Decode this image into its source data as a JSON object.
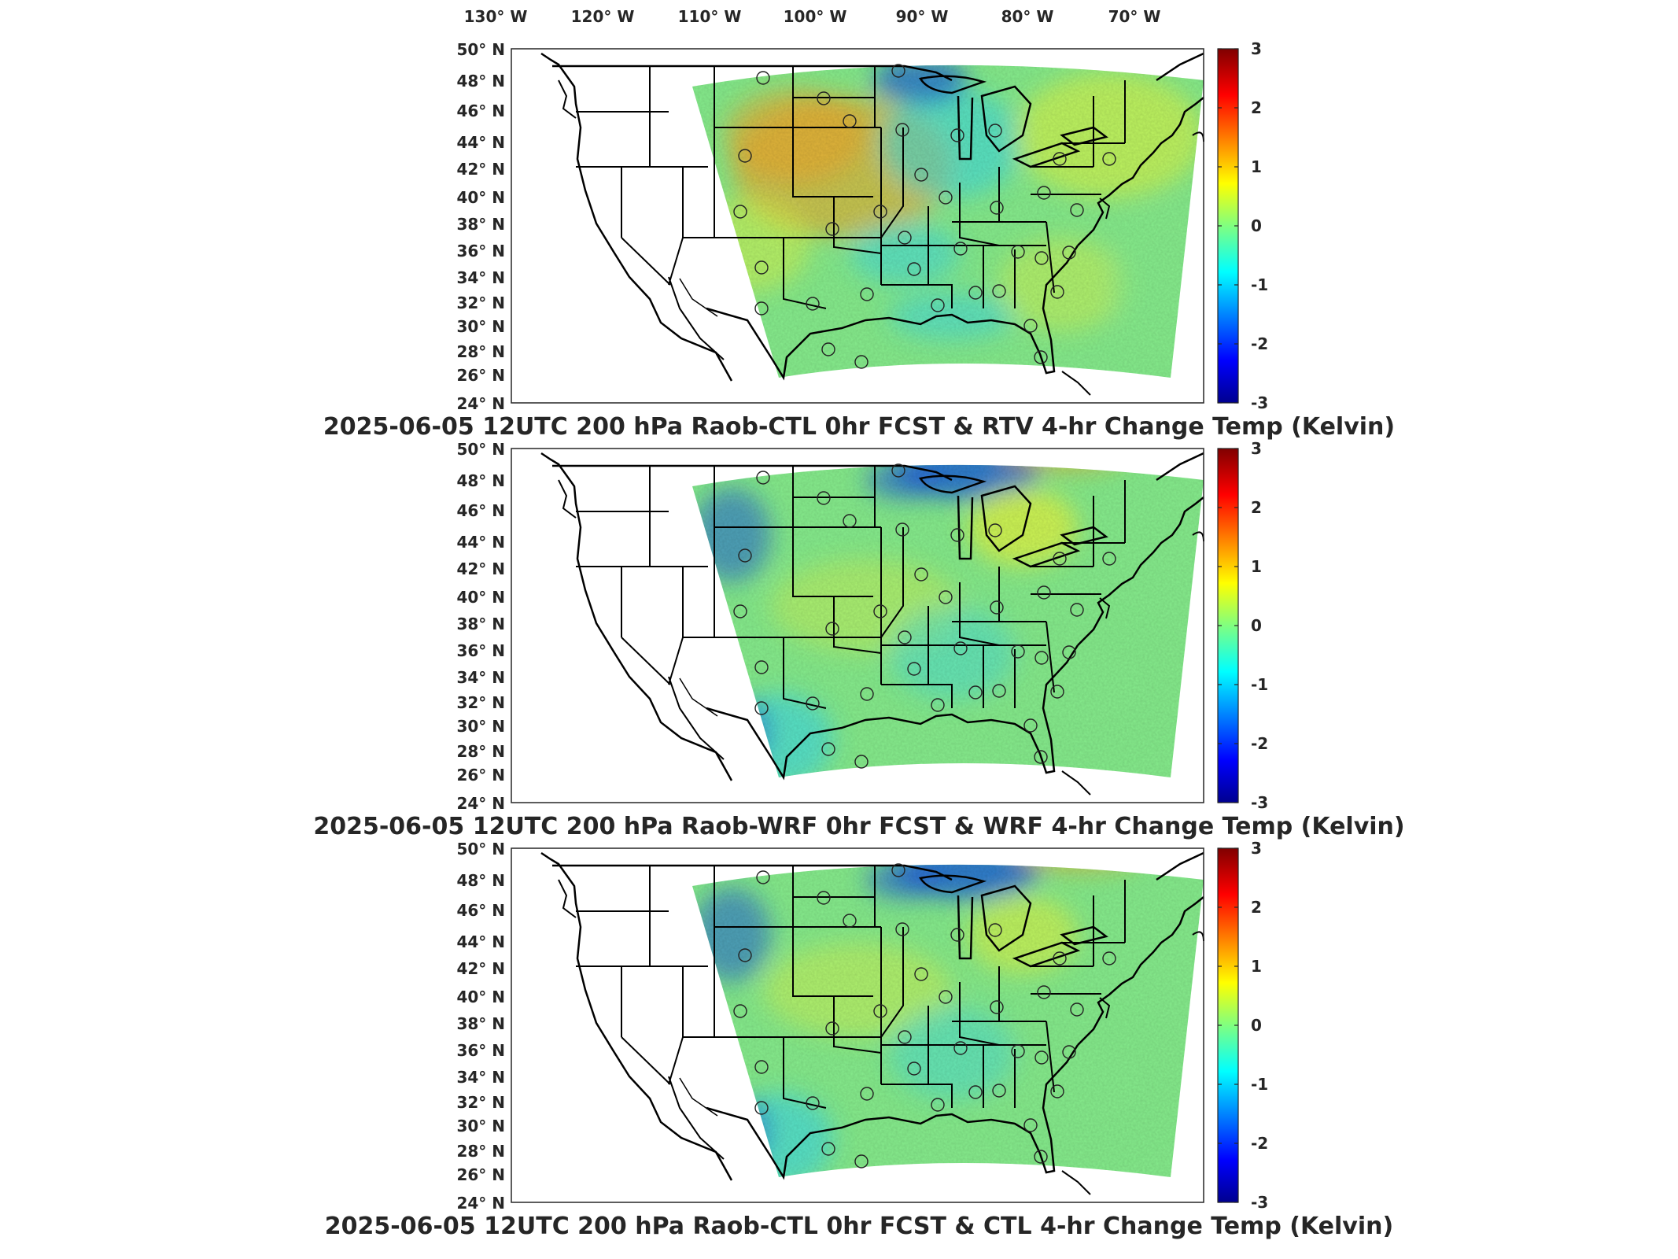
{
  "figure": {
    "lon_labels": [
      "130° W",
      "120° W",
      "110° W",
      "100° W",
      "90° W",
      "80° W",
      "70° W"
    ],
    "lon_values": [
      -130,
      -120,
      -110,
      -100,
      -90,
      -80,
      -70
    ],
    "lat_labels": [
      "50° N",
      "48° N",
      "46° N",
      "44° N",
      "42° N",
      "40° N",
      "38° N",
      "36° N",
      "34° N",
      "32° N",
      "30° N",
      "28° N",
      "26° N",
      "24° N"
    ],
    "colorbar": {
      "ticks": [
        "3",
        "2",
        "1",
        "0",
        "-1",
        "-2",
        "-3"
      ],
      "range": [
        -3,
        3
      ],
      "colormap": "jet",
      "colors": [
        "#00008f",
        "#0000ff",
        "#00ffff",
        "#ffff00",
        "#ff0000",
        "#800000"
      ]
    },
    "palette": {
      "yellow": "#e6f23c",
      "green": "#84e88a",
      "cyan": "#35d6e6",
      "blue": "#1c5ed6",
      "orange": "#f5a020"
    }
  },
  "panels": [
    {
      "id": "rtv",
      "title": "2025-06-05 12UTC 200 hPa Raob-CTL 0hr FCST & RTV 4-hr Change Temp (Kelvin)"
    },
    {
      "id": "wrf",
      "title": "2025-06-05 12UTC 200 hPa Raob-WRF 0hr FCST & WRF 4-hr Change Temp (Kelvin)"
    },
    {
      "id": "ctl",
      "title": "2025-06-05 12UTC 200 hPa Raob-CTL 0hr FCST & CTL 4-hr Change Temp (Kelvin)"
    }
  ]
}
